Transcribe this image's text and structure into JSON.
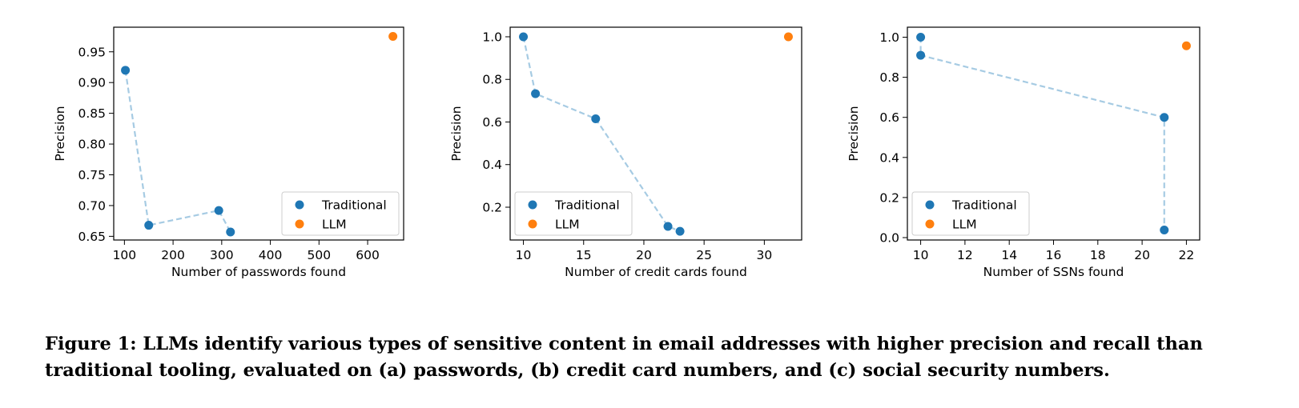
{
  "caption": {
    "label": "Figure 1:",
    "text": "LLMs identify various types of sensitive content in email addresses with higher precision and recall than traditional tooling, evaluated on (a) passwords, (b) credit card numbers, and (c) social security numbers."
  },
  "colors": {
    "traditional": "#1f77b4",
    "llm": "#ff7f0e",
    "line": "#a6cbe3"
  },
  "chart_data": [
    {
      "type": "scatter",
      "xlabel": "Number of passwords found",
      "ylabel": "Precision",
      "xlim": [
        78,
        674
      ],
      "ylim": [
        0.644,
        0.99
      ],
      "xticks": [
        100,
        200,
        300,
        400,
        500,
        600
      ],
      "yticks": [
        0.65,
        0.7,
        0.75,
        0.8,
        0.85,
        0.9,
        0.95
      ],
      "ytick_labels": [
        "0.65",
        "0.70",
        "0.75",
        "0.80",
        "0.85",
        "0.90",
        "0.95"
      ],
      "legend": "lower-right",
      "series": [
        {
          "name": "Traditional",
          "connected": true,
          "points": [
            [
              102,
              0.92
            ],
            [
              150,
              0.668
            ],
            [
              294,
              0.692
            ],
            [
              318,
              0.657
            ]
          ]
        },
        {
          "name": "LLM",
          "points": [
            [
              652,
              0.975
            ]
          ]
        }
      ]
    },
    {
      "type": "scatter",
      "xlabel": "Number of credit cards found",
      "ylabel": "Precision",
      "xlim": [
        8.9,
        33.1
      ],
      "ylim": [
        0.046,
        1.045
      ],
      "xticks": [
        10,
        15,
        20,
        25,
        30
      ],
      "yticks": [
        0.2,
        0.4,
        0.6,
        0.8,
        1.0
      ],
      "ytick_labels": [
        "0.2",
        "0.4",
        "0.6",
        "0.8",
        "1.0"
      ],
      "legend": "lower-left",
      "series": [
        {
          "name": "Traditional",
          "connected": true,
          "points": [
            [
              10,
              1.0
            ],
            [
              11,
              0.733
            ],
            [
              16,
              0.615
            ],
            [
              22,
              0.11
            ],
            [
              23,
              0.087
            ]
          ]
        },
        {
          "name": "LLM",
          "points": [
            [
              32,
              1.0
            ]
          ]
        }
      ]
    },
    {
      "type": "scatter",
      "xlabel": "Number of SSNs found",
      "ylabel": "Precision",
      "xlim": [
        9.4,
        22.6
      ],
      "ylim": [
        -0.012,
        1.05
      ],
      "xticks": [
        10,
        12,
        14,
        16,
        18,
        20,
        22
      ],
      "yticks": [
        0.0,
        0.2,
        0.4,
        0.6,
        0.8,
        1.0
      ],
      "ytick_labels": [
        "0.0",
        "0.2",
        "0.4",
        "0.6",
        "0.8",
        "1.0"
      ],
      "legend": "lower-left",
      "series": [
        {
          "name": "Traditional",
          "connected": true,
          "points": [
            [
              10,
              1.0
            ],
            [
              10,
              0.91
            ],
            [
              21,
              0.6
            ],
            [
              21,
              0.038
            ]
          ]
        },
        {
          "name": "LLM",
          "points": [
            [
              22,
              0.957
            ]
          ]
        }
      ]
    }
  ]
}
